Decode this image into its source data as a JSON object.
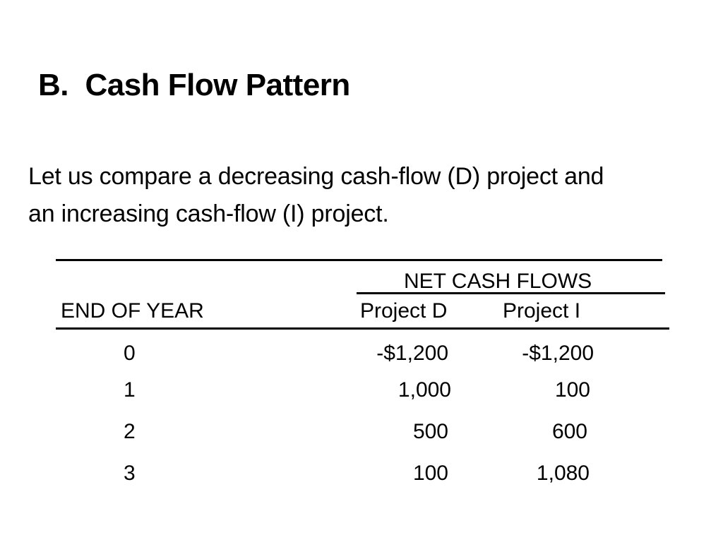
{
  "slide": {
    "title": "B.  Cash Flow Pattern",
    "intro_line1": "Let us compare a decreasing cash-flow (D) project and",
    "intro_line2": "an increasing cash-flow (I) project."
  },
  "table": {
    "group_header": "NET CASH FLOWS",
    "year_header": "END OF YEAR",
    "col_d_header": "Project D",
    "col_i_header": "Project I",
    "rows": [
      {
        "year": "0",
        "d": "-$1,200",
        "i": "-$1,200"
      },
      {
        "year": "1",
        "d": "1,000",
        "i": "100"
      },
      {
        "year": "2",
        "d": "500",
        "i": "600"
      },
      {
        "year": "3",
        "d": "100",
        "i": "1,080"
      }
    ]
  }
}
